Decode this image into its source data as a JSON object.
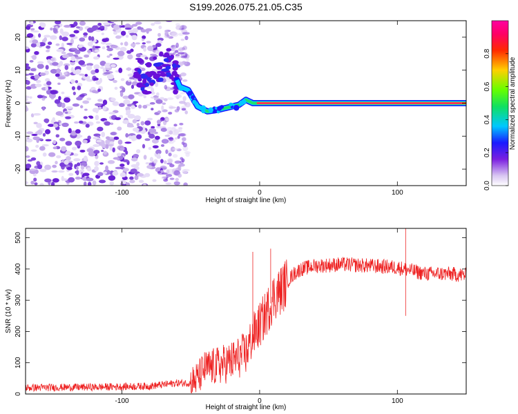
{
  "title": "S199.2026.075.21.05.C35",
  "chart_data": [
    {
      "type": "heatmap",
      "panel": "spectrogram",
      "xlabel": "Height of straight line (km)",
      "ylabel": "Frequency (Hz)",
      "xlim": [
        -170,
        150
      ],
      "ylim": [
        -25,
        25
      ],
      "xticks": [
        -100,
        0,
        100
      ],
      "yticks": [
        -20,
        -10,
        0,
        10,
        20
      ],
      "colorbar": {
        "label": "Normalized spectral amplitude",
        "range": [
          0,
          1
        ],
        "ticks": [
          0.0,
          0.2,
          0.4,
          0.6,
          0.8
        ],
        "colormap": "rainbow (white-lavender-purple-blue-cyan-green-yellow-red-magenta)"
      },
      "ridge": {
        "description": "Narrow strong carrier line at ~0 Hz for heights above ~-40 km; scattered weak noise below ~-60 km",
        "x": [
          -80,
          -70,
          -65,
          -58,
          -52,
          -45,
          -38,
          -30,
          -20,
          -15,
          -10,
          -5,
          0,
          50,
          100,
          150
        ],
        "y": [
          8,
          11,
          12,
          5,
          4,
          -1,
          -2.5,
          -2,
          -1,
          -0.5,
          1,
          0,
          0,
          0,
          0,
          0
        ]
      },
      "noise_region_x": [
        -170,
        -58
      ]
    },
    {
      "type": "line",
      "panel": "snr",
      "xlabel": "Height of straight line (km)",
      "ylabel": "SNR (10 * v/v)",
      "xlim": [
        -170,
        150
      ],
      "ylim": [
        0,
        530
      ],
      "xticks": [
        -100,
        0,
        100
      ],
      "yticks": [
        0,
        100,
        200,
        300,
        400,
        500
      ],
      "color": "#ee2222",
      "series": [
        {
          "name": "SNR",
          "x": [
            -170,
            -120,
            -80,
            -60,
            -50,
            -45,
            -40,
            -30,
            -20,
            -10,
            -5,
            0,
            5,
            10,
            15,
            20,
            25,
            30,
            40,
            60,
            80,
            100,
            110,
            120,
            135,
            150
          ],
          "values": [
            20,
            22,
            25,
            35,
            35,
            50,
            80,
            90,
            105,
            130,
            185,
            220,
            260,
            310,
            330,
            360,
            385,
            400,
            410,
            415,
            410,
            405,
            395,
            385,
            385,
            380
          ]
        }
      ],
      "spikes": [
        {
          "x": -5,
          "value": 455
        },
        {
          "x": 8,
          "value": 465
        },
        {
          "x": 106,
          "value": 530
        },
        {
          "x": 106,
          "value": 250
        }
      ]
    }
  ]
}
